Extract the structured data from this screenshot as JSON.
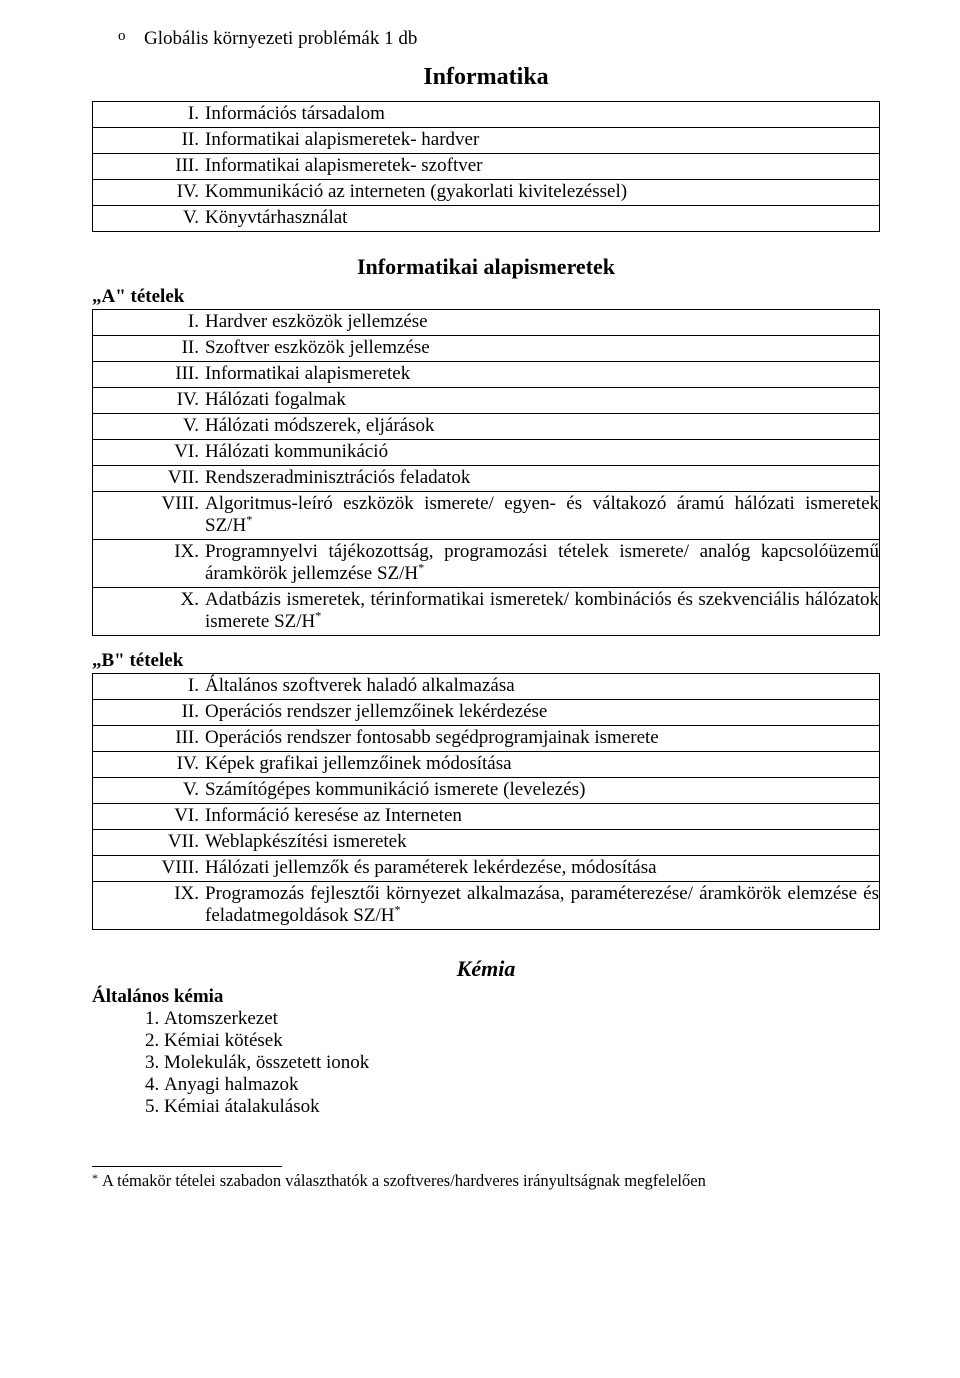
{
  "bullet": {
    "mark": "o",
    "text": "Globális környezeti problémák 1 db"
  },
  "title1": "Informatika",
  "table1": [
    {
      "num": "I.",
      "text": "Információs társadalom"
    },
    {
      "num": "II.",
      "text": "Informatikai alapismeretek- hardver"
    },
    {
      "num": "III.",
      "text": "Informatikai alapismeretek- szoftver"
    },
    {
      "num": "IV.",
      "text": "Kommunikáció az interneten (gyakorlati kivitelezéssel)"
    },
    {
      "num": "V.",
      "text": "Könyvtárhasználat"
    }
  ],
  "title2": "Informatikai alapismeretek",
  "a_label": "„A\" tételek",
  "tableA": [
    {
      "num": "I.",
      "text": "Hardver eszközök jellemzése"
    },
    {
      "num": "II.",
      "text": "Szoftver eszközök jellemzése"
    },
    {
      "num": "III.",
      "text": "Informatikai alapismeretek"
    },
    {
      "num": "IV.",
      "text": "Hálózati fogalmak"
    },
    {
      "num": "V.",
      "text": "Hálózati módszerek, eljárások"
    },
    {
      "num": "VI.",
      "text": "Hálózati kommunikáció"
    },
    {
      "num": "VII.",
      "text": "Rendszeradminisztrációs feladatok"
    },
    {
      "num": "VIII.",
      "text": "Algoritmus-leíró eszközök ismerete/ egyen- és váltakozó áramú hálózati ismeretek SZ/H",
      "star": true,
      "justify": true
    },
    {
      "num": "IX.",
      "text": "Programnyelvi tájékozottság, programozási tételek ismerete/ analóg kapcsolóüzemű áramkörök jellemzése SZ/H",
      "star": true,
      "justify": true
    },
    {
      "num": "X.",
      "text": "Adatbázis ismeretek, térinformatikai ismeretek/ kombinációs és szekvenciális hálózatok ismerete SZ/H",
      "star": true,
      "justify": true
    }
  ],
  "b_label": "„B\" tételek",
  "tableB": [
    {
      "num": "I.",
      "text": "Általános szoftverek haladó alkalmazása"
    },
    {
      "num": "II.",
      "text": "Operációs rendszer jellemzőinek lekérdezése"
    },
    {
      "num": "III.",
      "text": "Operációs rendszer fontosabb segédprogramjainak ismerete"
    },
    {
      "num": "IV.",
      "text": "Képek grafikai jellemzőinek módosítása"
    },
    {
      "num": "V.",
      "text": "Számítógépes kommunikáció ismerete (levelezés)"
    },
    {
      "num": "VI.",
      "text": "Információ keresése az Interneten"
    },
    {
      "num": "VII.",
      "text": "Weblapkészítési ismeretek"
    },
    {
      "num": "VIII.",
      "text": "Hálózati jellemzők és paraméterek lekérdezése, módosítása"
    },
    {
      "num": "IX.",
      "text": "Programozás fejlesztői környezet alkalmazása, paraméterezése/ áramkörök elemzése és feladatmegoldások SZ/H",
      "star": true,
      "justify": true
    }
  ],
  "chem_title": "Kémia",
  "gen_chem": "Általános kémia",
  "chem_list": [
    "Atomszerkezet",
    "Kémiai kötések",
    "Molekulák, összetett ionok",
    "Anyagi halmazok",
    "Kémiai átalakulások"
  ],
  "footnote": {
    "mark": "*",
    "text": "A témakör tételei szabadon választhatók a szoftveres/hardveres irányultságnak megfelelően"
  }
}
